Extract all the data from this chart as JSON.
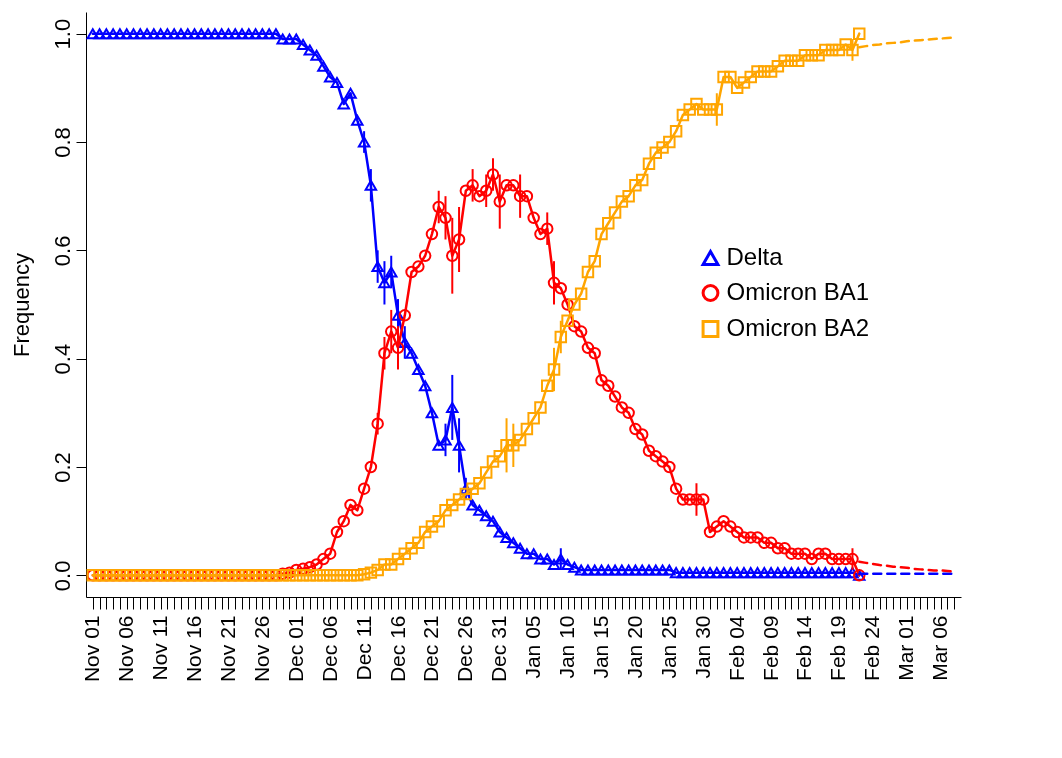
{
  "chart_data": {
    "type": "line",
    "ylabel": "Frequency",
    "legend": "right",
    "ylim": [
      -0.04,
      1.04
    ],
    "yticks": [
      {
        "value": 0,
        "label": "0.0"
      },
      {
        "value": 0.2,
        "label": "0.2"
      },
      {
        "value": 0.4,
        "label": "0.4"
      },
      {
        "value": 0.6,
        "label": "0.6"
      },
      {
        "value": 0.8,
        "label": "0.8"
      },
      {
        "value": 1,
        "label": "1.0"
      }
    ],
    "categories": [
      "Nov 01",
      null,
      null,
      null,
      null,
      "Nov 06",
      null,
      null,
      null,
      null,
      "Nov 11",
      null,
      null,
      null,
      null,
      "Nov 16",
      null,
      null,
      null,
      null,
      "Nov 21",
      null,
      null,
      null,
      null,
      "Nov 26",
      null,
      null,
      null,
      null,
      "Dec 01",
      null,
      null,
      null,
      null,
      "Dec 06",
      null,
      null,
      null,
      null,
      "Dec 11",
      null,
      null,
      null,
      null,
      "Dec 16",
      null,
      null,
      null,
      null,
      "Dec 21",
      null,
      null,
      null,
      null,
      "Dec 26",
      null,
      null,
      null,
      null,
      "Dec 31",
      null,
      null,
      null,
      null,
      "Jan 05",
      null,
      null,
      null,
      null,
      "Jan 10",
      null,
      null,
      null,
      null,
      "Jan 15",
      null,
      null,
      null,
      null,
      "Jan 20",
      null,
      null,
      null,
      null,
      "Jan 25",
      null,
      null,
      null,
      null,
      "Jan 30",
      null,
      null,
      null,
      null,
      "Feb 04",
      null,
      null,
      null,
      null,
      "Feb 09",
      null,
      null,
      null,
      null,
      "Feb 14",
      null,
      null,
      null,
      null,
      "Feb 19",
      null,
      null,
      null,
      null,
      "Feb 24",
      null,
      null,
      null,
      null,
      "Mar 01",
      null,
      null,
      null,
      null,
      "Mar 06",
      null,
      null
    ],
    "series": [
      {
        "name": "Delta",
        "color": "#0000ff",
        "marker": "triangle",
        "values": [
          1,
          1,
          1,
          1,
          1,
          1,
          1,
          1,
          1,
          1,
          1,
          1,
          1,
          1,
          1,
          1,
          1,
          1,
          1,
          1,
          1,
          1,
          1,
          1,
          1,
          1,
          1,
          1,
          0.99,
          0.99,
          0.99,
          0.98,
          0.97,
          0.96,
          0.94,
          0.92,
          0.91,
          0.87,
          0.89,
          0.84,
          0.8,
          0.72,
          0.57,
          0.54,
          0.56,
          0.48,
          0.43,
          0.41,
          0.38,
          0.35,
          0.3,
          0.24,
          0.25,
          0.31,
          0.24,
          0.16,
          0.13,
          0.12,
          0.11,
          0.1,
          0.08,
          0.07,
          0.06,
          0.05,
          0.04,
          0.04,
          0.03,
          0.03,
          0.02,
          0.03,
          0.02,
          0.015,
          0.01,
          0.01,
          0.01,
          0.01,
          0.01,
          0.01,
          0.01,
          0.01,
          0.01,
          0.01,
          0.01,
          0.01,
          0.01,
          0.01,
          0.005,
          0.005,
          0.005,
          0.005,
          0.005,
          0.005,
          0.005,
          0.005,
          0.005,
          0.005,
          0.005,
          0.005,
          0.005,
          0.005,
          0.005,
          0.005,
          0.005,
          0.005,
          0.005,
          0.005,
          0.005,
          0.005,
          0.005,
          0.005,
          0.005,
          0.005,
          0.005,
          0,
          null,
          null,
          null,
          null,
          null,
          null,
          null,
          null,
          null,
          null,
          null,
          null,
          null,
          null
        ],
        "errors": [
          null,
          null,
          null,
          null,
          null,
          null,
          null,
          null,
          null,
          null,
          null,
          null,
          null,
          null,
          null,
          null,
          null,
          null,
          null,
          null,
          null,
          null,
          null,
          null,
          null,
          null,
          null,
          null,
          null,
          null,
          null,
          null,
          null,
          null,
          null,
          null,
          null,
          null,
          null,
          null,
          0.02,
          0.03,
          0.03,
          0.04,
          0.03,
          0.03,
          0.03,
          null,
          null,
          null,
          null,
          null,
          0.03,
          0.06,
          0.05,
          0.02,
          null,
          null,
          null,
          null,
          null,
          null,
          null,
          null,
          null,
          null,
          null,
          null,
          null,
          0.02,
          null,
          null,
          null,
          null,
          null,
          null,
          null,
          null,
          null,
          null,
          null,
          null,
          null,
          null,
          null,
          null,
          null,
          null,
          null,
          null,
          null,
          null,
          null,
          null,
          null,
          null,
          null,
          null,
          null,
          null,
          null,
          null,
          null,
          null,
          null,
          null,
          null,
          null,
          null,
          null,
          null,
          null,
          null,
          null,
          null,
          null,
          null,
          null,
          null,
          null,
          null,
          null,
          null,
          null,
          null,
          null,
          null,
          null
        ]
      },
      {
        "name": "Omicron BA1",
        "color": "#ff0000",
        "marker": "circle",
        "values": [
          0,
          0,
          0,
          0,
          0,
          0,
          0,
          0,
          0,
          0,
          0,
          0,
          0,
          0,
          0,
          0,
          0,
          0,
          0,
          0,
          0,
          0,
          0,
          0,
          0,
          0,
          0,
          0,
          0.003,
          0.005,
          0.01,
          0.012,
          0.015,
          0.02,
          0.03,
          0.04,
          0.08,
          0.1,
          0.13,
          0.12,
          0.16,
          0.2,
          0.28,
          0.41,
          0.45,
          0.42,
          0.48,
          0.56,
          0.57,
          0.59,
          0.63,
          0.68,
          0.66,
          0.59,
          0.62,
          0.71,
          0.72,
          0.7,
          0.71,
          0.74,
          0.69,
          0.72,
          0.72,
          0.7,
          0.7,
          0.66,
          0.63,
          0.64,
          0.54,
          0.53,
          0.5,
          0.46,
          0.45,
          0.42,
          0.41,
          0.36,
          0.35,
          0.33,
          0.31,
          0.3,
          0.27,
          0.26,
          0.23,
          0.22,
          0.21,
          0.2,
          0.16,
          0.14,
          0.14,
          0.14,
          0.14,
          0.08,
          0.09,
          0.1,
          0.09,
          0.08,
          0.07,
          0.07,
          0.07,
          0.06,
          0.06,
          0.05,
          0.05,
          0.04,
          0.04,
          0.04,
          0.03,
          0.04,
          0.04,
          0.03,
          0.03,
          0.03,
          0.03,
          0,
          null,
          null,
          null,
          null,
          null,
          null,
          null,
          null,
          null,
          null,
          null,
          null,
          null,
          null
        ],
        "errors": [
          null,
          null,
          null,
          null,
          null,
          null,
          null,
          null,
          null,
          null,
          null,
          null,
          null,
          null,
          null,
          null,
          null,
          null,
          null,
          null,
          null,
          null,
          null,
          null,
          null,
          null,
          null,
          null,
          null,
          null,
          null,
          null,
          null,
          null,
          null,
          null,
          null,
          null,
          null,
          null,
          null,
          null,
          0.02,
          0.03,
          0.04,
          0.04,
          null,
          null,
          null,
          null,
          null,
          0.03,
          0.04,
          0.07,
          0.06,
          null,
          0.03,
          null,
          0.03,
          0.03,
          0.05,
          null,
          null,
          0.04,
          null,
          null,
          null,
          0.03,
          0.04,
          null,
          null,
          null,
          null,
          null,
          null,
          null,
          null,
          null,
          null,
          null,
          null,
          null,
          null,
          null,
          null,
          null,
          null,
          null,
          null,
          0.03,
          null,
          null,
          null,
          null,
          null,
          null,
          null,
          null,
          null,
          null,
          null,
          null,
          null,
          null,
          null,
          null,
          null,
          null,
          null,
          null,
          null,
          null,
          0.02,
          null,
          null,
          null,
          null,
          null,
          null,
          null,
          null,
          null,
          null,
          null,
          null,
          null,
          null,
          null
        ]
      },
      {
        "name": "Omicron BA2",
        "color": "#ffa500",
        "marker": "square",
        "values": [
          0,
          0,
          0,
          0,
          0,
          0,
          0,
          0,
          0,
          0,
          0,
          0,
          0,
          0,
          0,
          0,
          0,
          0,
          0,
          0,
          0,
          0,
          0,
          0,
          0,
          0,
          0,
          0,
          0,
          0,
          0,
          0,
          0,
          0,
          0,
          0,
          0,
          0,
          0,
          0,
          0.002,
          0.005,
          0.01,
          0.02,
          0.02,
          0.03,
          0.04,
          0.05,
          0.06,
          0.08,
          0.09,
          0.1,
          0.12,
          0.13,
          0.14,
          0.15,
          0.16,
          0.17,
          0.19,
          0.21,
          0.22,
          0.24,
          0.24,
          0.25,
          0.27,
          0.29,
          0.31,
          0.35,
          0.38,
          0.44,
          0.47,
          0.5,
          0.52,
          0.56,
          0.58,
          0.63,
          0.65,
          0.67,
          0.69,
          0.7,
          0.72,
          0.73,
          0.76,
          0.78,
          0.79,
          0.8,
          0.82,
          0.85,
          0.86,
          0.87,
          0.86,
          0.86,
          0.86,
          0.92,
          0.92,
          0.9,
          0.91,
          0.92,
          0.93,
          0.93,
          0.93,
          0.94,
          0.95,
          0.95,
          0.95,
          0.96,
          0.96,
          0.96,
          0.97,
          0.97,
          0.97,
          0.98,
          0.97,
          1,
          null,
          null,
          null,
          null,
          null,
          null,
          null,
          null,
          null,
          null,
          null,
          null,
          null,
          null
        ],
        "errors": [
          null,
          null,
          null,
          null,
          null,
          null,
          null,
          null,
          null,
          null,
          null,
          null,
          null,
          null,
          null,
          null,
          null,
          null,
          null,
          null,
          null,
          null,
          null,
          null,
          null,
          null,
          null,
          null,
          null,
          null,
          null,
          null,
          null,
          null,
          null,
          null,
          null,
          null,
          null,
          null,
          null,
          null,
          null,
          null,
          null,
          null,
          null,
          null,
          null,
          null,
          null,
          null,
          null,
          null,
          null,
          null,
          null,
          null,
          null,
          null,
          null,
          0.05,
          0.04,
          null,
          null,
          null,
          null,
          null,
          0.04,
          0.03,
          null,
          null,
          null,
          null,
          null,
          null,
          null,
          null,
          null,
          null,
          null,
          null,
          null,
          null,
          null,
          null,
          null,
          null,
          null,
          null,
          null,
          null,
          0.03,
          null,
          null,
          null,
          null,
          null,
          null,
          null,
          null,
          null,
          null,
          null,
          null,
          null,
          null,
          null,
          null,
          null,
          null,
          null,
          0.02,
          null,
          null,
          null,
          null,
          null,
          null,
          null,
          null,
          null,
          null,
          null,
          null,
          null,
          null,
          null
        ]
      },
      {
        "color": "#0000ff",
        "line_style": "dashed",
        "marker": "none",
        "values": [
          null,
          null,
          null,
          null,
          null,
          null,
          null,
          null,
          null,
          null,
          null,
          null,
          null,
          null,
          null,
          null,
          null,
          null,
          null,
          null,
          null,
          null,
          null,
          null,
          null,
          null,
          null,
          null,
          null,
          null,
          null,
          null,
          null,
          null,
          null,
          null,
          null,
          null,
          null,
          null,
          null,
          null,
          null,
          null,
          null,
          null,
          null,
          null,
          null,
          null,
          null,
          null,
          null,
          null,
          null,
          null,
          null,
          null,
          null,
          null,
          null,
          null,
          null,
          null,
          null,
          null,
          null,
          null,
          null,
          null,
          null,
          null,
          null,
          null,
          null,
          null,
          null,
          null,
          null,
          null,
          null,
          null,
          null,
          null,
          null,
          null,
          null,
          null,
          null,
          null,
          null,
          null,
          null,
          null,
          null,
          null,
          null,
          null,
          null,
          null,
          null,
          null,
          null,
          null,
          null,
          null,
          null,
          null,
          null,
          null,
          null,
          null,
          null,
          0.003,
          0.003,
          0.003,
          0.003,
          0.003,
          0.003,
          0.003,
          0.003,
          0.003,
          0.003,
          0.003,
          0.003,
          0.003,
          0.003,
          0.003
        ]
      },
      {
        "color": "#ff0000",
        "line_style": "dashed",
        "marker": "none",
        "values": [
          null,
          null,
          null,
          null,
          null,
          null,
          null,
          null,
          null,
          null,
          null,
          null,
          null,
          null,
          null,
          null,
          null,
          null,
          null,
          null,
          null,
          null,
          null,
          null,
          null,
          null,
          null,
          null,
          null,
          null,
          null,
          null,
          null,
          null,
          null,
          null,
          null,
          null,
          null,
          null,
          null,
          null,
          null,
          null,
          null,
          null,
          null,
          null,
          null,
          null,
          null,
          null,
          null,
          null,
          null,
          null,
          null,
          null,
          null,
          null,
          null,
          null,
          null,
          null,
          null,
          null,
          null,
          null,
          null,
          null,
          null,
          null,
          null,
          null,
          null,
          null,
          null,
          null,
          null,
          null,
          null,
          null,
          null,
          null,
          null,
          null,
          null,
          null,
          null,
          null,
          null,
          null,
          null,
          null,
          null,
          null,
          null,
          null,
          null,
          null,
          null,
          null,
          null,
          null,
          null,
          null,
          null,
          null,
          null,
          null,
          null,
          null,
          null,
          0.025,
          0.023,
          0.021,
          0.019,
          0.018,
          0.016,
          0.015,
          0.014,
          0.012,
          0.011,
          0.01,
          0.009,
          0.009,
          0.008,
          0.007
        ]
      },
      {
        "color": "#ffa500",
        "line_style": "dashed",
        "marker": "none",
        "values": [
          null,
          null,
          null,
          null,
          null,
          null,
          null,
          null,
          null,
          null,
          null,
          null,
          null,
          null,
          null,
          null,
          null,
          null,
          null,
          null,
          null,
          null,
          null,
          null,
          null,
          null,
          null,
          null,
          null,
          null,
          null,
          null,
          null,
          null,
          null,
          null,
          null,
          null,
          null,
          null,
          null,
          null,
          null,
          null,
          null,
          null,
          null,
          null,
          null,
          null,
          null,
          null,
          null,
          null,
          null,
          null,
          null,
          null,
          null,
          null,
          null,
          null,
          null,
          null,
          null,
          null,
          null,
          null,
          null,
          null,
          null,
          null,
          null,
          null,
          null,
          null,
          null,
          null,
          null,
          null,
          null,
          null,
          null,
          null,
          null,
          null,
          null,
          null,
          null,
          null,
          null,
          null,
          null,
          null,
          null,
          null,
          null,
          null,
          null,
          null,
          null,
          null,
          null,
          null,
          null,
          null,
          null,
          null,
          null,
          null,
          null,
          null,
          null,
          0.975,
          0.977,
          0.979,
          0.98,
          0.982,
          0.983,
          0.984,
          0.986,
          0.987,
          0.988,
          0.989,
          0.99,
          0.991,
          0.992,
          0.993
        ]
      }
    ]
  }
}
